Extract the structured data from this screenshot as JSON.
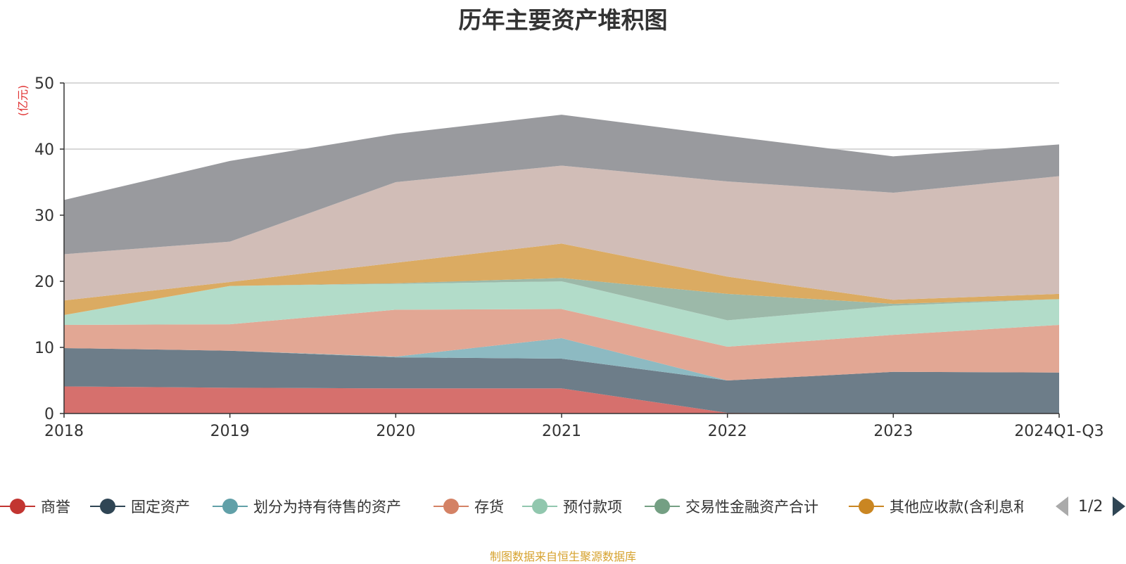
{
  "chart_data": {
    "type": "area",
    "title": "历年主要资产堆积图",
    "unit_label": "(亿元)",
    "x": [
      "2018",
      "2019",
      "2020",
      "2021",
      "2022",
      "2023",
      "2024Q1-Q3"
    ],
    "ylim": [
      0,
      50
    ],
    "yticks": [
      0,
      10,
      20,
      30,
      40,
      50
    ],
    "grid": true,
    "legend_position": "bottom",
    "series": [
      {
        "name": "商誉",
        "color": "#d6706d",
        "values": [
          4.1,
          3.9,
          3.8,
          3.8,
          0.1,
          0.0,
          0.0
        ]
      },
      {
        "name": "固定资产",
        "color": "#6d7d89",
        "values": [
          5.8,
          5.6,
          4.7,
          4.5,
          4.9,
          6.3,
          6.2
        ]
      },
      {
        "name": "划分为持有待售的资产",
        "color": "#8dbac2",
        "values": [
          0.0,
          0.0,
          0.1,
          3.1,
          0.0,
          0.0,
          0.0
        ]
      },
      {
        "name": "存货",
        "color": "#e2a794",
        "values": [
          3.5,
          4.0,
          7.1,
          4.4,
          5.1,
          5.6,
          7.2
        ]
      },
      {
        "name": "预付款项",
        "color": "#b2dcc9",
        "values": [
          1.5,
          5.8,
          3.9,
          4.2,
          4.0,
          4.4,
          3.9
        ]
      },
      {
        "name": "交易性金融资产合计",
        "color": "#9cb9a9",
        "values": [
          0.0,
          0.0,
          0.1,
          0.5,
          4.0,
          0.3,
          0.0
        ]
      },
      {
        "name": "其他应收款(含利息和股利)",
        "color": "#dbab62",
        "values": [
          2.2,
          0.6,
          3.1,
          5.2,
          2.6,
          0.6,
          0.8
        ]
      },
      {
        "name": "",
        "color": "#d1bdb7",
        "values": [
          7.0,
          6.1,
          12.2,
          11.8,
          14.4,
          16.2,
          17.8
        ]
      },
      {
        "name": "",
        "color": "#999a9e",
        "values": [
          8.2,
          12.2,
          7.3,
          7.7,
          6.9,
          5.5,
          4.8
        ]
      }
    ]
  },
  "legend": {
    "items": [
      {
        "label": "商誉",
        "color": "#c23531"
      },
      {
        "label": "固定资产",
        "color": "#2f4554"
      },
      {
        "label": "划分为持有待售的资产",
        "color": "#61a0a8"
      },
      {
        "label": "存货",
        "color": "#d48265"
      },
      {
        "label": "预付款项",
        "color": "#91c7ae"
      },
      {
        "label": "交易性金融资产合计",
        "color": "#749f83"
      },
      {
        "label": "其他应收款(含利息和股利)",
        "color": "#ca8622"
      }
    ],
    "page_text": "1/2"
  },
  "source_note": "制图数据来自恒生聚源数据库"
}
